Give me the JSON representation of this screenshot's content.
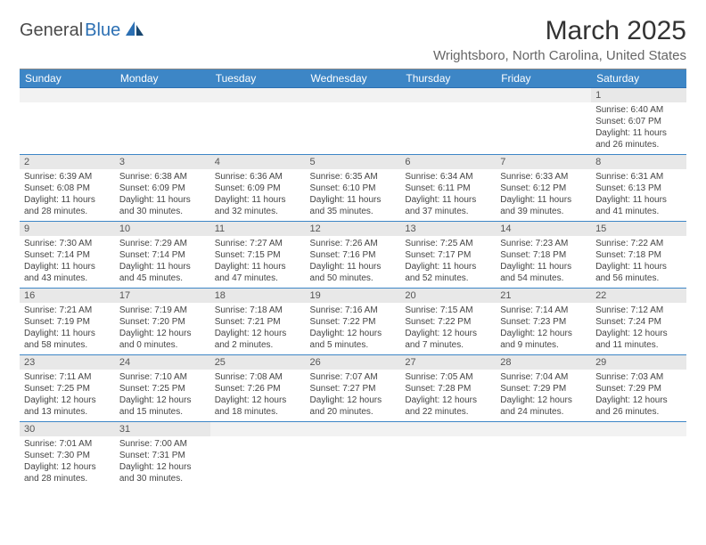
{
  "brand": {
    "general": "General",
    "blue": "Blue"
  },
  "title": "March 2025",
  "location": "Wrightsboro, North Carolina, United States",
  "colors": {
    "header_bg": "#3d86c6",
    "header_text": "#ffffff",
    "daynum_bg": "#e8e8e8",
    "cell_border": "#3d86c6",
    "logo_blue": "#2b6fb3",
    "text": "#444444"
  },
  "weekdays": [
    "Sunday",
    "Monday",
    "Tuesday",
    "Wednesday",
    "Thursday",
    "Friday",
    "Saturday"
  ],
  "weeks": [
    [
      null,
      null,
      null,
      null,
      null,
      null,
      {
        "n": "1",
        "sr": "6:40 AM",
        "ss": "6:07 PM",
        "dl": "11 hours and 26 minutes."
      }
    ],
    [
      {
        "n": "2",
        "sr": "6:39 AM",
        "ss": "6:08 PM",
        "dl": "11 hours and 28 minutes."
      },
      {
        "n": "3",
        "sr": "6:38 AM",
        "ss": "6:09 PM",
        "dl": "11 hours and 30 minutes."
      },
      {
        "n": "4",
        "sr": "6:36 AM",
        "ss": "6:09 PM",
        "dl": "11 hours and 32 minutes."
      },
      {
        "n": "5",
        "sr": "6:35 AM",
        "ss": "6:10 PM",
        "dl": "11 hours and 35 minutes."
      },
      {
        "n": "6",
        "sr": "6:34 AM",
        "ss": "6:11 PM",
        "dl": "11 hours and 37 minutes."
      },
      {
        "n": "7",
        "sr": "6:33 AM",
        "ss": "6:12 PM",
        "dl": "11 hours and 39 minutes."
      },
      {
        "n": "8",
        "sr": "6:31 AM",
        "ss": "6:13 PM",
        "dl": "11 hours and 41 minutes."
      }
    ],
    [
      {
        "n": "9",
        "sr": "7:30 AM",
        "ss": "7:14 PM",
        "dl": "11 hours and 43 minutes."
      },
      {
        "n": "10",
        "sr": "7:29 AM",
        "ss": "7:14 PM",
        "dl": "11 hours and 45 minutes."
      },
      {
        "n": "11",
        "sr": "7:27 AM",
        "ss": "7:15 PM",
        "dl": "11 hours and 47 minutes."
      },
      {
        "n": "12",
        "sr": "7:26 AM",
        "ss": "7:16 PM",
        "dl": "11 hours and 50 minutes."
      },
      {
        "n": "13",
        "sr": "7:25 AM",
        "ss": "7:17 PM",
        "dl": "11 hours and 52 minutes."
      },
      {
        "n": "14",
        "sr": "7:23 AM",
        "ss": "7:18 PM",
        "dl": "11 hours and 54 minutes."
      },
      {
        "n": "15",
        "sr": "7:22 AM",
        "ss": "7:18 PM",
        "dl": "11 hours and 56 minutes."
      }
    ],
    [
      {
        "n": "16",
        "sr": "7:21 AM",
        "ss": "7:19 PM",
        "dl": "11 hours and 58 minutes."
      },
      {
        "n": "17",
        "sr": "7:19 AM",
        "ss": "7:20 PM",
        "dl": "12 hours and 0 minutes."
      },
      {
        "n": "18",
        "sr": "7:18 AM",
        "ss": "7:21 PM",
        "dl": "12 hours and 2 minutes."
      },
      {
        "n": "19",
        "sr": "7:16 AM",
        "ss": "7:22 PM",
        "dl": "12 hours and 5 minutes."
      },
      {
        "n": "20",
        "sr": "7:15 AM",
        "ss": "7:22 PM",
        "dl": "12 hours and 7 minutes."
      },
      {
        "n": "21",
        "sr": "7:14 AM",
        "ss": "7:23 PM",
        "dl": "12 hours and 9 minutes."
      },
      {
        "n": "22",
        "sr": "7:12 AM",
        "ss": "7:24 PM",
        "dl": "12 hours and 11 minutes."
      }
    ],
    [
      {
        "n": "23",
        "sr": "7:11 AM",
        "ss": "7:25 PM",
        "dl": "12 hours and 13 minutes."
      },
      {
        "n": "24",
        "sr": "7:10 AM",
        "ss": "7:25 PM",
        "dl": "12 hours and 15 minutes."
      },
      {
        "n": "25",
        "sr": "7:08 AM",
        "ss": "7:26 PM",
        "dl": "12 hours and 18 minutes."
      },
      {
        "n": "26",
        "sr": "7:07 AM",
        "ss": "7:27 PM",
        "dl": "12 hours and 20 minutes."
      },
      {
        "n": "27",
        "sr": "7:05 AM",
        "ss": "7:28 PM",
        "dl": "12 hours and 22 minutes."
      },
      {
        "n": "28",
        "sr": "7:04 AM",
        "ss": "7:29 PM",
        "dl": "12 hours and 24 minutes."
      },
      {
        "n": "29",
        "sr": "7:03 AM",
        "ss": "7:29 PM",
        "dl": "12 hours and 26 minutes."
      }
    ],
    [
      {
        "n": "30",
        "sr": "7:01 AM",
        "ss": "7:30 PM",
        "dl": "12 hours and 28 minutes."
      },
      {
        "n": "31",
        "sr": "7:00 AM",
        "ss": "7:31 PM",
        "dl": "12 hours and 30 minutes."
      },
      null,
      null,
      null,
      null,
      null
    ]
  ],
  "labels": {
    "sunrise": "Sunrise:",
    "sunset": "Sunset:",
    "daylight": "Daylight:"
  }
}
